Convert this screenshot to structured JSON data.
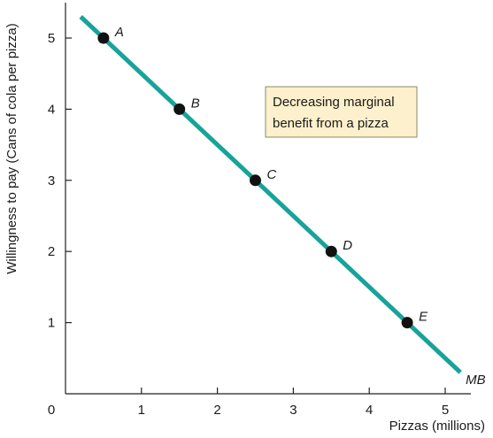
{
  "chart_data": {
    "type": "line",
    "xlabel": "Pizzas (millions)",
    "ylabel": "Willingness to pay (Cans of cola per pizza)",
    "xlim": [
      0,
      5.5
    ],
    "ylim": [
      0,
      5.5
    ],
    "x_ticks": [
      0,
      1,
      2,
      3,
      4,
      5
    ],
    "y_ticks": [
      1,
      2,
      3,
      4,
      5
    ],
    "grid": false,
    "series": [
      {
        "name": "MB",
        "color": "#17a39a",
        "line": {
          "x": [
            0.2,
            5.2
          ],
          "y": [
            5.3,
            0.3
          ]
        },
        "points": [
          {
            "label": "A",
            "x": 0.5,
            "y": 5
          },
          {
            "label": "B",
            "x": 1.5,
            "y": 4
          },
          {
            "label": "C",
            "x": 2.5,
            "y": 3
          },
          {
            "label": "D",
            "x": 3.5,
            "y": 2
          },
          {
            "label": "E",
            "x": 4.5,
            "y": 1
          }
        ]
      }
    ],
    "annotation": {
      "lines": [
        "Decreasing marginal",
        "benefit from a pizza"
      ],
      "fill": "#fdf0cc",
      "border": "#8a8a6a"
    }
  }
}
